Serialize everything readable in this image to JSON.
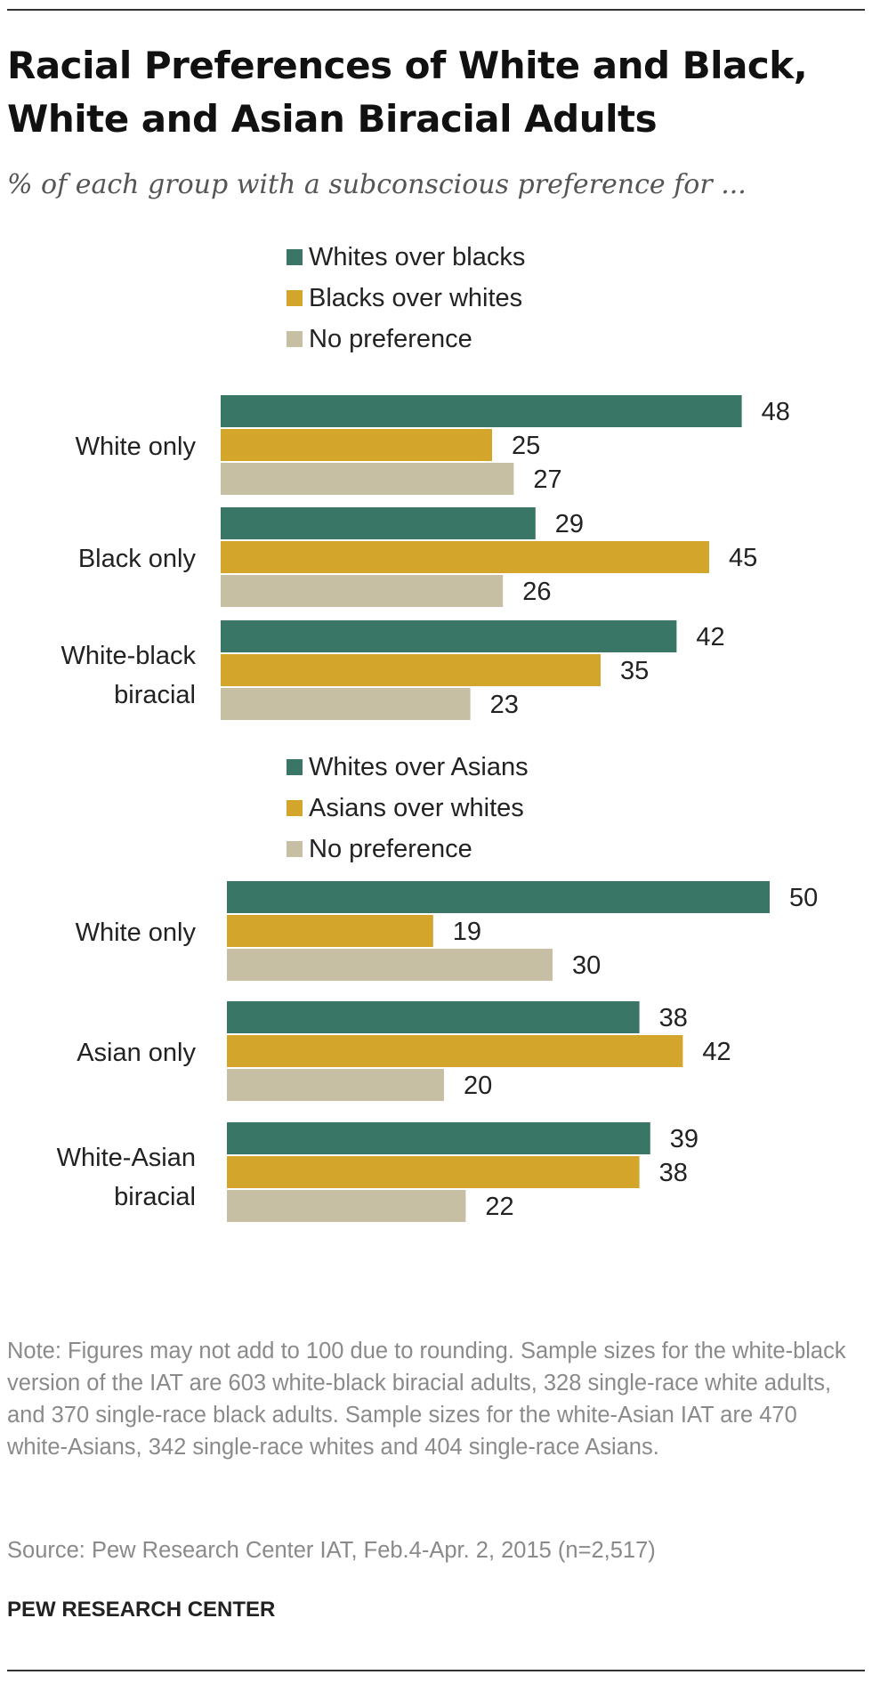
{
  "title": "Racial Preferences of White and Black, White and Asian Biracial Adults",
  "subtitle": "% of each group with a subconscious preference for ...",
  "note": "Note: Figures may not add to 100 due to rounding. Sample sizes for the white-black version of the IAT are 603 white-black biracial adults, 328 single-race white adults, and 370 single-race black adults. Sample sizes for the white-Asian IAT are 470 white-Asians, 342 single-race whites and 404 single-race Asians.",
  "source": "Source: Pew Research Center IAT, Feb.4-Apr. 2, 2015 (n=2,517)",
  "brand": "PEW RESEARCH CENTER",
  "colors": {
    "series1": "#3a7666",
    "series2": "#d4a52b",
    "series3": "#c7bfa3"
  },
  "chart_data": [
    {
      "type": "bar",
      "orientation": "horizontal",
      "categories": [
        "White only",
        "Black only",
        "White-black biracial"
      ],
      "series": [
        {
          "name": "Whites over blacks",
          "values": [
            48,
            29,
            42
          ]
        },
        {
          "name": "Blacks over whites",
          "values": [
            25,
            45,
            35
          ]
        },
        {
          "name": "No preference",
          "values": [
            27,
            26,
            23
          ]
        }
      ],
      "legend": "top",
      "grid": false
    },
    {
      "type": "bar",
      "orientation": "horizontal",
      "categories": [
        "White only",
        "Asian only",
        "White-Asian biracial"
      ],
      "series": [
        {
          "name": "Whites over Asians",
          "values": [
            50,
            38,
            39
          ]
        },
        {
          "name": "Asians over whites",
          "values": [
            19,
            42,
            38
          ]
        },
        {
          "name": "No preference",
          "values": [
            30,
            20,
            22
          ]
        }
      ],
      "legend": "top",
      "grid": false
    }
  ]
}
